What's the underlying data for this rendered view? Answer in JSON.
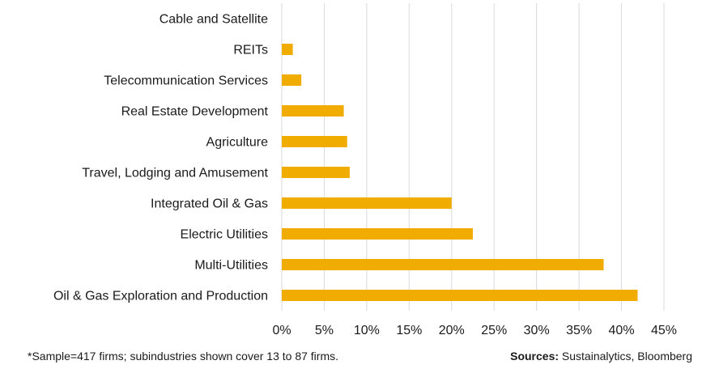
{
  "chart_data": {
    "type": "bar",
    "orientation": "horizontal",
    "categories": [
      "Cable and Satellite",
      "REITs",
      "Telecommunication Services",
      "Real Estate Development",
      "Agriculture",
      "Travel, Lodging and Amusement",
      "Integrated Oil & Gas",
      "Electric Utilities",
      "Multi-Utilities",
      "Oil & Gas Exploration and Production"
    ],
    "values": [
      0,
      1.3,
      2.3,
      7.3,
      7.7,
      8.0,
      20.0,
      22.5,
      37.9,
      41.9
    ],
    "bar_color": "#f0ac00",
    "grid_color": "#d9d9d9",
    "xlim": [
      0,
      45
    ],
    "xticks": [
      0,
      5,
      10,
      15,
      20,
      25,
      30,
      35,
      40,
      45
    ],
    "xtick_labels": [
      "0%",
      "5%",
      "10%",
      "15%",
      "20%",
      "25%",
      "30%",
      "35%",
      "40%",
      "45%"
    ],
    "grid": true
  },
  "footnote": "*Sample=417 firms; subindustries  shown cover 13 to 87 firms.",
  "sources": {
    "label": "Sources:",
    "text": "Sustainalytics, Bloomberg"
  }
}
